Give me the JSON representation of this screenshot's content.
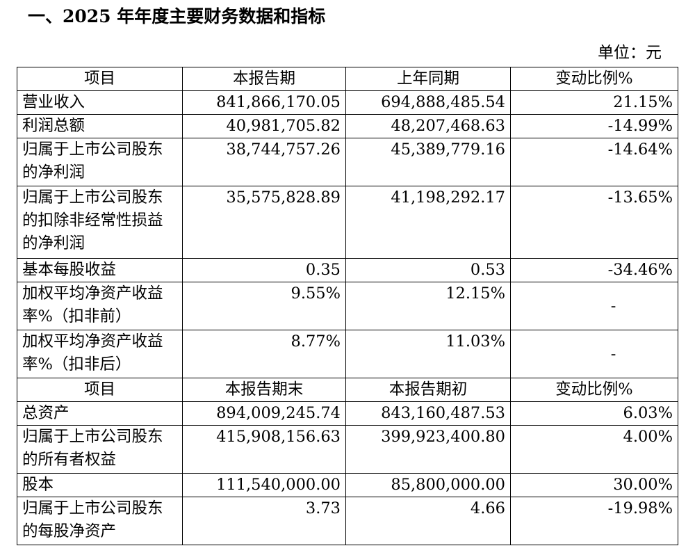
{
  "title": "一、2025 年年度主要财务数据和指标",
  "unit_label": "单位：元",
  "header1": {
    "item": "项目",
    "current": "本报告期",
    "prior": "上年同期",
    "change": "变动比例%"
  },
  "rows1": [
    {
      "item": "营业收入",
      "current": "841,866,170.05",
      "prior": "694,888,485.54",
      "change": "21.15%"
    },
    {
      "item": "利润总额",
      "current": "40,981,705.82",
      "prior": "48,207,468.63",
      "change": "-14.99%"
    },
    {
      "item": "归属于上市公司股东的净利润",
      "current": "38,744,757.26",
      "prior": "45,389,779.16",
      "change": "-14.64%"
    },
    {
      "item": "归属于上市公司股东的扣除非经常性损益的净利润",
      "current": "35,575,828.89",
      "prior": "41,198,292.17",
      "change": "-13.65%"
    },
    {
      "item": "基本每股收益",
      "current": "0.35",
      "prior": "0.53",
      "change": "-34.46%"
    },
    {
      "item": "加权平均净资产收益率%（扣非前）",
      "current": "9.55%",
      "prior": "12.15%",
      "change": "-"
    },
    {
      "item": "加权平均净资产收益率%（扣非后）",
      "current": "8.77%",
      "prior": "11.03%",
      "change": "-"
    }
  ],
  "header2": {
    "item": "项目",
    "current": "本报告期末",
    "prior": "本报告期初",
    "change": "变动比例%"
  },
  "rows2": [
    {
      "item": "总资产",
      "current": "894,009,245.74",
      "prior": "843,160,487.53",
      "change": "6.03%"
    },
    {
      "item": "归属于上市公司股东的所有者权益",
      "current": "415,908,156.63",
      "prior": "399,923,400.80",
      "change": "4.00%"
    },
    {
      "item": "股本",
      "current": "111,540,000.00",
      "prior": "85,800,000.00",
      "change": "30.00%"
    },
    {
      "item": "归属于上市公司股东的每股净资产",
      "current": "3.73",
      "prior": "4.66",
      "change": "-19.98%"
    }
  ]
}
